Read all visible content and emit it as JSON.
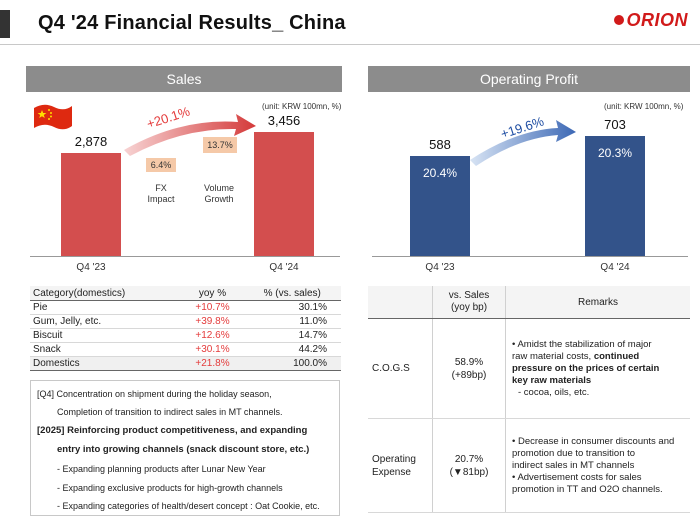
{
  "header": {
    "title": "Q4 '24 Financial Results_ China",
    "logo": "ORION"
  },
  "sales": {
    "header": "Sales",
    "unit": "(unit: KRW 100mn, %)",
    "growth": "+20.1%",
    "fx_pct": "6.4%",
    "fx_label_1": "FX",
    "fx_label_2": "Impact",
    "vol_pct": "13.7%",
    "vol_label_1": "Volume",
    "vol_label_2": "Growth",
    "bar1_value_label": "2,878",
    "bar2_value_label": "3,456"
  },
  "op": {
    "header": "Operating Profit",
    "unit": "(unit: KRW 100mn, %)",
    "growth": "+19.6%",
    "bar1_value_label": "588",
    "bar2_value_label": "703",
    "bar1_margin": "20.4%",
    "bar2_margin": "20.3%"
  },
  "chart_data": [
    {
      "type": "bar",
      "title": "Sales",
      "categories": [
        "Q4 '23",
        "Q4 '24"
      ],
      "values": [
        2878,
        3456
      ],
      "ylim": [
        0,
        3456
      ],
      "color": "#d34e4e"
    },
    {
      "type": "bar",
      "title": "Operating Profit",
      "categories": [
        "Q4 '23",
        "Q4 '24"
      ],
      "values": [
        588,
        703
      ],
      "ylim": [
        0,
        703
      ],
      "color": "#33538a"
    }
  ],
  "domestics": {
    "headers": [
      "Category(domestics)",
      "yoy %",
      "% (vs. sales)"
    ],
    "rows": [
      {
        "cat": "Pie",
        "yoy": "+10.7%",
        "share": "30.1%"
      },
      {
        "cat": "Gum, Jelly, etc.",
        "yoy": "+39.8%",
        "share": "11.0%"
      },
      {
        "cat": "Biscuit",
        "yoy": "+12.6%",
        "share": "14.7%"
      },
      {
        "cat": "Snack",
        "yoy": "+30.1%",
        "share": "44.2%"
      },
      {
        "cat": "Domestics",
        "yoy": "+21.8%",
        "share": "100.0%"
      }
    ]
  },
  "notes": {
    "l1": "[Q4] Concentration on shipment during the holiday season,",
    "l2": "Completion of transition to indirect sales in MT channels.",
    "l3": "[2025] Reinforcing product competitiveness, and expanding",
    "l4": "entry into growing channels (snack discount store, etc.)",
    "l5": "- Expanding planning products after Lunar New Year",
    "l6": "- Expanding exclusive products for high-growth channels",
    "l7": "- Expanding categories of health/desert concept : Oat Cookie, etc."
  },
  "cost_table": {
    "h_vs_sales_1": "vs. Sales",
    "h_vs_sales_2": "(yoy bp)",
    "h_remarks": "Remarks",
    "cogs_label": "C.O.G.S",
    "cogs_pct": "58.9%",
    "cogs_bp": "(+89bp)",
    "cogs_r1": "• Amidst the stabilization of major",
    "cogs_r2a": "raw material costs, ",
    "cogs_r2b": "continued",
    "cogs_r3": "pressure on the prices of certain",
    "cogs_r4": "key raw materials",
    "cogs_r5": "- cocoa, oils, etc.",
    "opex_label_1": "Operating",
    "opex_label_2": "Expense",
    "opex_pct": "20.7%",
    "opex_bp": "(▼81bp)",
    "opex_r1": "• Decrease in consumer discounts and",
    "opex_r2": "promotion due to transition to",
    "opex_r3": "indirect sales in MT channels",
    "opex_r4": "• Advertisement costs for sales",
    "opex_r5": "promotion in TT and O2O channels."
  },
  "colors": {
    "sales_bar": "#d34e4e",
    "op_bar": "#33538a",
    "growth_red": "#e43b3b",
    "growth_blue": "#1f4ea3"
  }
}
